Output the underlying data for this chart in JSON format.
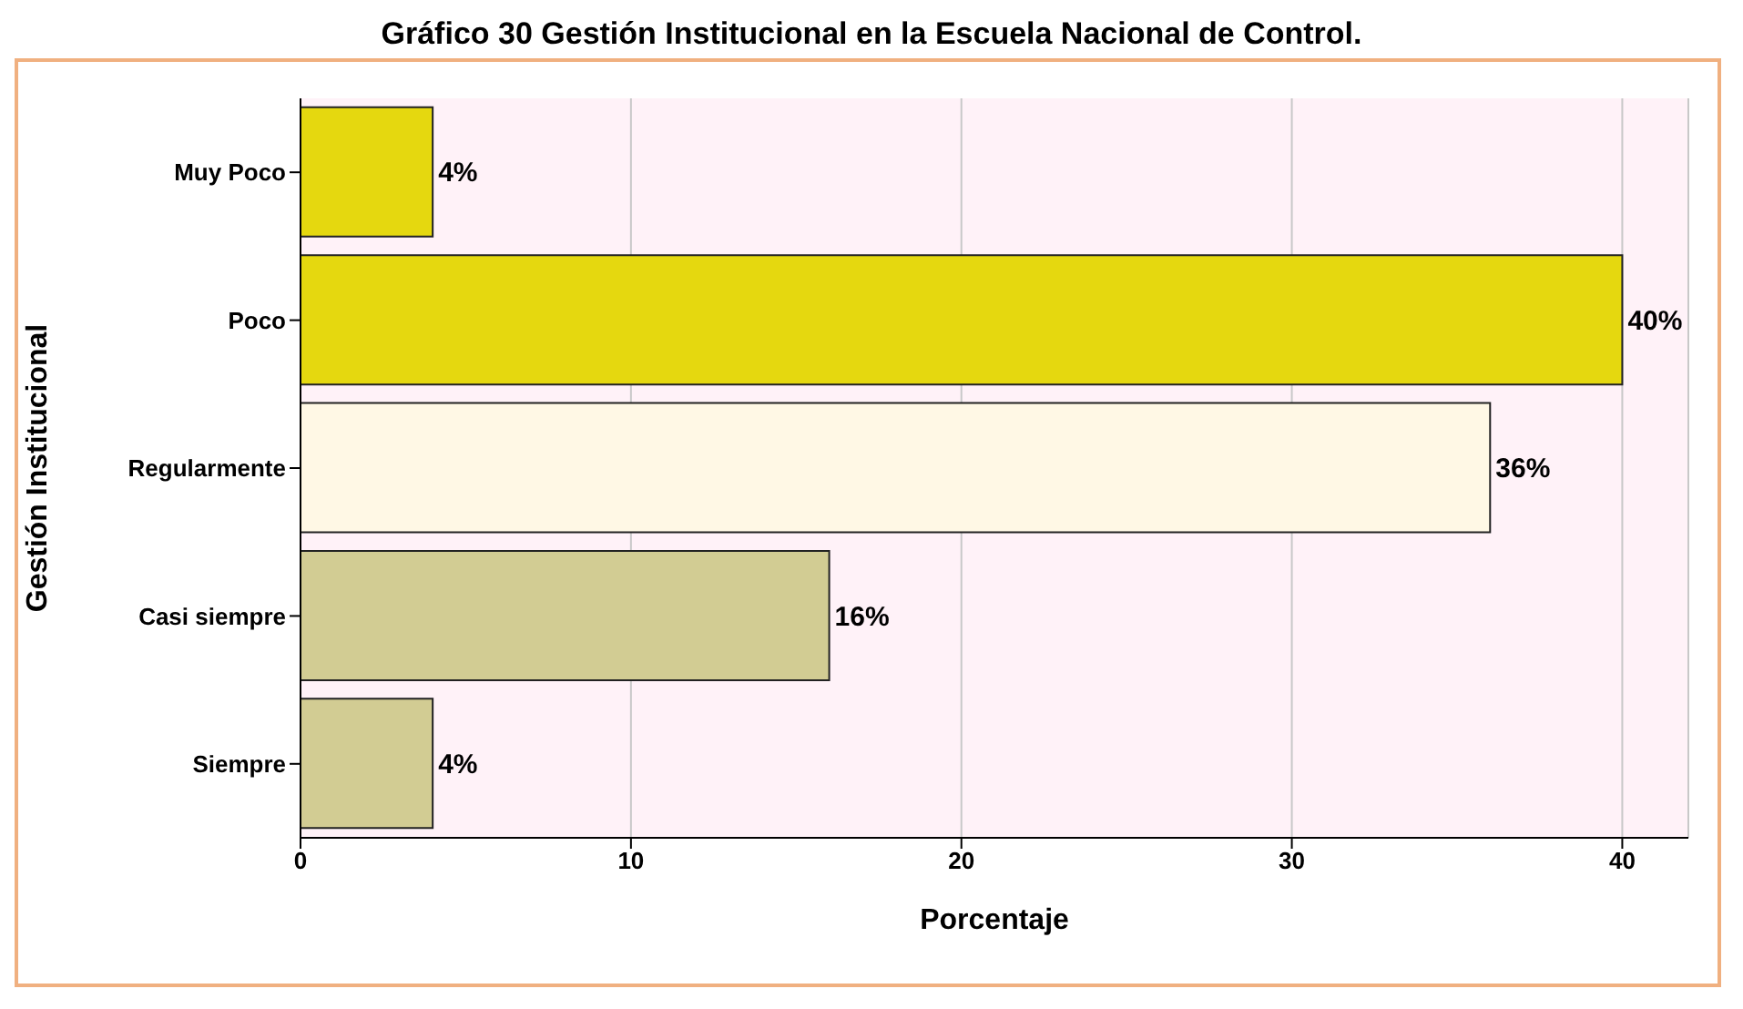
{
  "chart_data": {
    "type": "bar",
    "orientation": "horizontal",
    "title": "Gráfico 30 Gestión Institucional en la Escuela Nacional de Control.",
    "xlabel": "Porcentaje",
    "ylabel": "Gestión Institucional",
    "categories": [
      "Muy Poco",
      "Poco",
      "Regularmente",
      "Casi siempre",
      "Siempre"
    ],
    "values": [
      4,
      40,
      36,
      16,
      4
    ],
    "colors": [
      "#e5d80f",
      "#e5d80f",
      "#fff8e5",
      "#d2cc93",
      "#d2cc93"
    ],
    "value_labels": [
      "4%",
      "40%",
      "36%",
      "16%",
      "4%"
    ],
    "xlim": [
      0,
      42
    ],
    "xticks": [
      0,
      10,
      20,
      30,
      40
    ],
    "grid": "x"
  }
}
